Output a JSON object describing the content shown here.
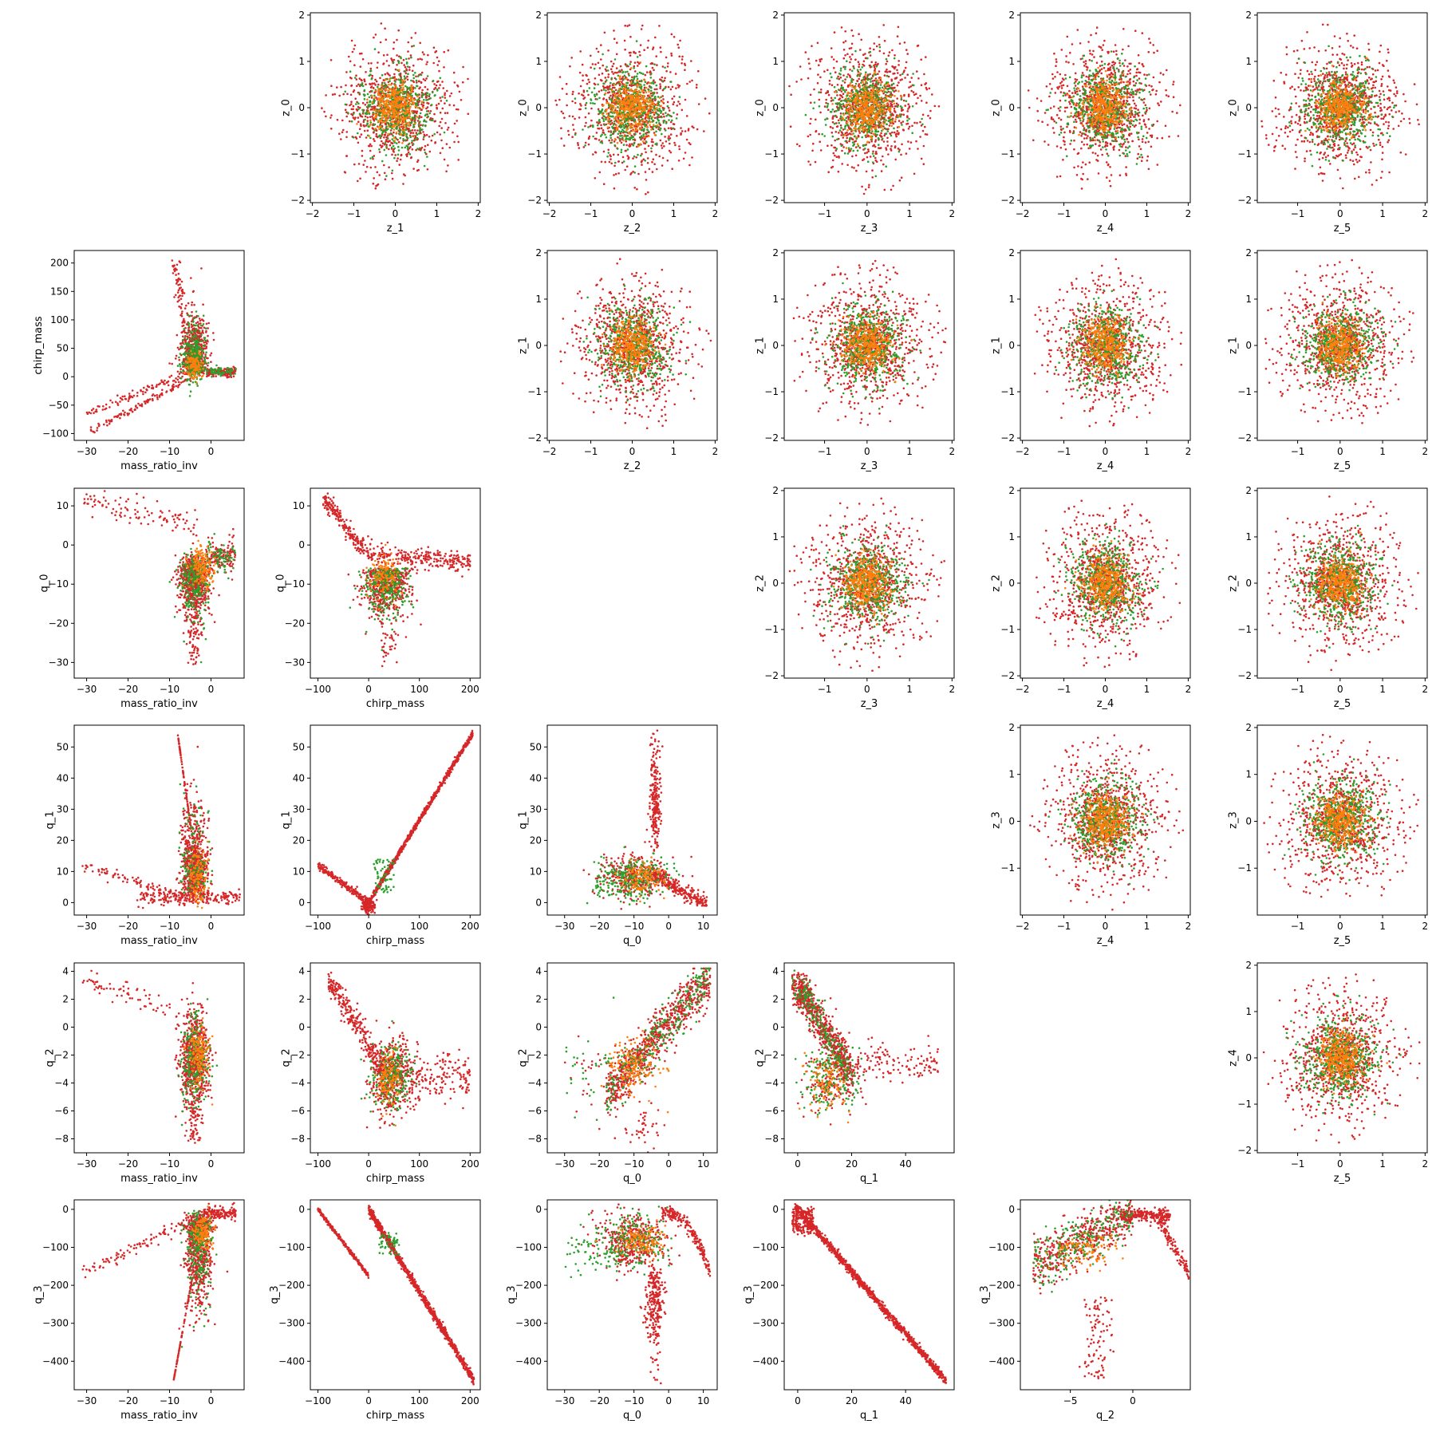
{
  "figure": {
    "type": "scatter-matrix",
    "point_colors": [
      "#d62728",
      "#2ca02c",
      "#ff7f0e"
    ],
    "axis_color": "#000000",
    "background": "#ffffff"
  },
  "chart_data": [
    {
      "type": "scatter",
      "row": 0,
      "col": 1,
      "xlabel": "z_1",
      "ylabel": "z_0",
      "xlim": [
        -2.05,
        2.05
      ],
      "ylim": [
        -2.05,
        2.05
      ],
      "xticks": [
        -2,
        -1,
        0,
        1,
        2
      ],
      "yticks": [
        -2,
        -1,
        0,
        1,
        2
      ],
      "xtick_labels": [
        "−2",
        "−1",
        "0",
        "1",
        "2"
      ],
      "ytick_labels": [
        "−2",
        "−1",
        "0",
        "1",
        "2"
      ],
      "dist": "gauss",
      "seed": 11
    },
    {
      "type": "scatter",
      "row": 0,
      "col": 2,
      "xlabel": "z_2",
      "ylabel": "z_0",
      "xlim": [
        -2.05,
        2.05
      ],
      "ylim": [
        -2.05,
        2.05
      ],
      "xticks": [
        -2,
        -1,
        0,
        1,
        2
      ],
      "yticks": [
        -2,
        -1,
        0,
        1,
        2
      ],
      "xtick_labels": [
        "−2",
        "−1",
        "0",
        "1",
        "2"
      ],
      "ytick_labels": [
        "−2",
        "−1",
        "0",
        "1",
        "2"
      ],
      "dist": "gauss",
      "seed": 12
    },
    {
      "type": "scatter",
      "row": 0,
      "col": 3,
      "xlabel": "z_3",
      "ylabel": "z_0",
      "xlim": [
        -1.95,
        2.05
      ],
      "ylim": [
        -2.05,
        2.05
      ],
      "xticks": [
        -1,
        0,
        1,
        2
      ],
      "yticks": [
        -2,
        -1,
        0,
        1,
        2
      ],
      "xtick_labels": [
        "−1",
        "0",
        "1",
        "2"
      ],
      "ytick_labels": [
        "−2",
        "−1",
        "0",
        "1",
        "2"
      ],
      "dist": "gauss",
      "seed": 13
    },
    {
      "type": "scatter",
      "row": 0,
      "col": 4,
      "xlabel": "z_4",
      "ylabel": "z_0",
      "xlim": [
        -2.05,
        2.05
      ],
      "ylim": [
        -2.05,
        2.05
      ],
      "xticks": [
        -2,
        -1,
        0,
        1,
        2
      ],
      "yticks": [
        -2,
        -1,
        0,
        1,
        2
      ],
      "xtick_labels": [
        "−2",
        "−1",
        "0",
        "1",
        "2"
      ],
      "ytick_labels": [
        "−2",
        "−1",
        "0",
        "1",
        "2"
      ],
      "dist": "gauss",
      "seed": 14
    },
    {
      "type": "scatter",
      "row": 0,
      "col": 5,
      "xlabel": "z_5",
      "ylabel": "z_0",
      "xlim": [
        -1.95,
        2.05
      ],
      "ylim": [
        -2.05,
        2.05
      ],
      "xticks": [
        -1,
        0,
        1,
        2
      ],
      "yticks": [
        -2,
        -1,
        0,
        1,
        2
      ],
      "xtick_labels": [
        "−1",
        "0",
        "1",
        "2"
      ],
      "ytick_labels": [
        "−2",
        "−1",
        "0",
        "1",
        "2"
      ],
      "dist": "gauss",
      "seed": 15
    },
    {
      "type": "scatter",
      "row": 1,
      "col": 0,
      "xlabel": "mass_ratio_inv",
      "ylabel": "chirp_mass",
      "xlim": [
        -33,
        8
      ],
      "ylim": [
        -112,
        222
      ],
      "xticks": [
        -30,
        -20,
        -10,
        0
      ],
      "yticks": [
        -100,
        -50,
        0,
        50,
        100,
        150,
        200
      ],
      "xtick_labels": [
        "−30",
        "−20",
        "−10",
        "0"
      ],
      "ytick_labels": [
        "−100",
        "−50",
        "0",
        "50",
        "100",
        "150",
        "200"
      ],
      "dist": "mr_cm",
      "seed": 21
    },
    {
      "type": "scatter",
      "row": 1,
      "col": 2,
      "xlabel": "z_2",
      "ylabel": "z_1",
      "xlim": [
        -2.05,
        2.05
      ],
      "ylim": [
        -2.05,
        2.05
      ],
      "xticks": [
        -2,
        -1,
        0,
        1,
        2
      ],
      "yticks": [
        -2,
        -1,
        0,
        1,
        2
      ],
      "xtick_labels": [
        "−2",
        "−1",
        "0",
        "1",
        "2"
      ],
      "ytick_labels": [
        "−2",
        "−1",
        "0",
        "1",
        "2"
      ],
      "dist": "gauss",
      "seed": 22
    },
    {
      "type": "scatter",
      "row": 1,
      "col": 3,
      "xlabel": "z_3",
      "ylabel": "z_1",
      "xlim": [
        -1.95,
        2.05
      ],
      "ylim": [
        -2.05,
        2.05
      ],
      "xticks": [
        -1,
        0,
        1,
        2
      ],
      "yticks": [
        -2,
        -1,
        0,
        1,
        2
      ],
      "xtick_labels": [
        "−1",
        "0",
        "1",
        "2"
      ],
      "ytick_labels": [
        "−2",
        "−1",
        "0",
        "1",
        "2"
      ],
      "dist": "gauss",
      "seed": 23
    },
    {
      "type": "scatter",
      "row": 1,
      "col": 4,
      "xlabel": "z_4",
      "ylabel": "z_1",
      "xlim": [
        -2.05,
        2.05
      ],
      "ylim": [
        -2.05,
        2.05
      ],
      "xticks": [
        -2,
        -1,
        0,
        1,
        2
      ],
      "yticks": [
        -2,
        -1,
        0,
        1,
        2
      ],
      "xtick_labels": [
        "−2",
        "−1",
        "0",
        "1",
        "2"
      ],
      "ytick_labels": [
        "−2",
        "−1",
        "0",
        "1",
        "2"
      ],
      "dist": "gauss",
      "seed": 24
    },
    {
      "type": "scatter",
      "row": 1,
      "col": 5,
      "xlabel": "z_5",
      "ylabel": "z_1",
      "xlim": [
        -1.95,
        2.05
      ],
      "ylim": [
        -2.05,
        2.05
      ],
      "xticks": [
        -1,
        0,
        1,
        2
      ],
      "yticks": [
        -2,
        -1,
        0,
        1,
        2
      ],
      "xtick_labels": [
        "−1",
        "0",
        "1",
        "2"
      ],
      "ytick_labels": [
        "−2",
        "−1",
        "0",
        "1",
        "2"
      ],
      "dist": "gauss",
      "seed": 25
    },
    {
      "type": "scatter",
      "row": 2,
      "col": 0,
      "xlabel": "mass_ratio_inv",
      "ylabel": "q_0",
      "xlim": [
        -33,
        8
      ],
      "ylim": [
        -34,
        14.5
      ],
      "xticks": [
        -30,
        -20,
        -10,
        0
      ],
      "yticks": [
        -30,
        -20,
        -10,
        0,
        10
      ],
      "xtick_labels": [
        "−30",
        "−20",
        "−10",
        "0"
      ],
      "ytick_labels": [
        "−30",
        "−20",
        "−10",
        "0",
        "10"
      ],
      "dist": "mr_q0",
      "seed": 31
    },
    {
      "type": "scatter",
      "row": 2,
      "col": 1,
      "xlabel": "chirp_mass",
      "ylabel": "q_0",
      "xlim": [
        -115,
        220
      ],
      "ylim": [
        -34,
        14.5
      ],
      "xticks": [
        -100,
        0,
        100,
        200
      ],
      "yticks": [
        -30,
        -20,
        -10,
        0,
        10
      ],
      "xtick_labels": [
        "−100",
        "0",
        "100",
        "200"
      ],
      "ytick_labels": [
        "−30",
        "−20",
        "−10",
        "0",
        "10"
      ],
      "dist": "cm_q0",
      "seed": 32
    },
    {
      "type": "scatter",
      "row": 2,
      "col": 3,
      "xlabel": "z_3",
      "ylabel": "z_2",
      "xlim": [
        -1.95,
        2.05
      ],
      "ylim": [
        -2.05,
        2.05
      ],
      "xticks": [
        -1,
        0,
        1,
        2
      ],
      "yticks": [
        -2,
        -1,
        0,
        1,
        2
      ],
      "xtick_labels": [
        "−1",
        "0",
        "1",
        "2"
      ],
      "ytick_labels": [
        "−2",
        "−1",
        "0",
        "1",
        "2"
      ],
      "dist": "gauss",
      "seed": 33
    },
    {
      "type": "scatter",
      "row": 2,
      "col": 4,
      "xlabel": "z_4",
      "ylabel": "z_2",
      "xlim": [
        -2.05,
        2.05
      ],
      "ylim": [
        -2.05,
        2.05
      ],
      "xticks": [
        -2,
        -1,
        0,
        1,
        2
      ],
      "yticks": [
        -2,
        -1,
        0,
        1,
        2
      ],
      "xtick_labels": [
        "−2",
        "−1",
        "0",
        "1",
        "2"
      ],
      "ytick_labels": [
        "−2",
        "−1",
        "0",
        "1",
        "2"
      ],
      "dist": "gauss",
      "seed": 34
    },
    {
      "type": "scatter",
      "row": 2,
      "col": 5,
      "xlabel": "z_5",
      "ylabel": "z_2",
      "xlim": [
        -1.95,
        2.05
      ],
      "ylim": [
        -2.05,
        2.05
      ],
      "xticks": [
        -1,
        0,
        1,
        2
      ],
      "yticks": [
        -2,
        -1,
        0,
        1,
        2
      ],
      "xtick_labels": [
        "−1",
        "0",
        "1",
        "2"
      ],
      "ytick_labels": [
        "−2",
        "−1",
        "0",
        "1",
        "2"
      ],
      "dist": "gauss",
      "seed": 35
    },
    {
      "type": "scatter",
      "row": 3,
      "col": 0,
      "xlabel": "mass_ratio_inv",
      "ylabel": "q_1",
      "xlim": [
        -33,
        8
      ],
      "ylim": [
        -4,
        57
      ],
      "xticks": [
        -30,
        -20,
        -10,
        0
      ],
      "yticks": [
        0,
        10,
        20,
        30,
        40,
        50
      ],
      "xtick_labels": [
        "−30",
        "−20",
        "−10",
        "0"
      ],
      "ytick_labels": [
        "0",
        "10",
        "20",
        "30",
        "40",
        "50"
      ],
      "dist": "mr_q1",
      "seed": 41
    },
    {
      "type": "scatter",
      "row": 3,
      "col": 1,
      "xlabel": "chirp_mass",
      "ylabel": "q_1",
      "xlim": [
        -115,
        220
      ],
      "ylim": [
        -4,
        57
      ],
      "xticks": [
        -100,
        0,
        100,
        200
      ],
      "yticks": [
        0,
        10,
        20,
        30,
        40,
        50
      ],
      "xtick_labels": [
        "−100",
        "0",
        "100",
        "200"
      ],
      "ytick_labels": [
        "0",
        "10",
        "20",
        "30",
        "40",
        "50"
      ],
      "dist": "cm_q1",
      "seed": 42
    },
    {
      "type": "scatter",
      "row": 3,
      "col": 2,
      "xlabel": "q_0",
      "ylabel": "q_1",
      "xlim": [
        -35,
        14
      ],
      "ylim": [
        -4,
        57
      ],
      "xticks": [
        -30,
        -20,
        -10,
        0,
        10
      ],
      "yticks": [
        0,
        10,
        20,
        30,
        40,
        50
      ],
      "xtick_labels": [
        "−30",
        "−20",
        "−10",
        "0",
        "10"
      ],
      "ytick_labels": [
        "0",
        "10",
        "20",
        "30",
        "40",
        "50"
      ],
      "dist": "q0_q1",
      "seed": 43
    },
    {
      "type": "scatter",
      "row": 3,
      "col": 4,
      "xlabel": "z_4",
      "ylabel": "z_3",
      "xlim": [
        -2.05,
        2.05
      ],
      "ylim": [
        -2.0,
        2.05
      ],
      "xticks": [
        -2,
        -1,
        0,
        1,
        2
      ],
      "yticks": [
        -1,
        0,
        1,
        2
      ],
      "xtick_labels": [
        "−2",
        "−1",
        "0",
        "1",
        "2"
      ],
      "ytick_labels": [
        "−1",
        "0",
        "1",
        "2"
      ],
      "dist": "gauss",
      "seed": 44
    },
    {
      "type": "scatter",
      "row": 3,
      "col": 5,
      "xlabel": "z_5",
      "ylabel": "z_3",
      "xlim": [
        -1.95,
        2.05
      ],
      "ylim": [
        -2.0,
        2.05
      ],
      "xticks": [
        -1,
        0,
        1,
        2
      ],
      "yticks": [
        -1,
        0,
        1,
        2
      ],
      "xtick_labels": [
        "−1",
        "0",
        "1",
        "2"
      ],
      "ytick_labels": [
        "−1",
        "0",
        "1",
        "2"
      ],
      "dist": "gauss",
      "seed": 45
    },
    {
      "type": "scatter",
      "row": 4,
      "col": 0,
      "xlabel": "mass_ratio_inv",
      "ylabel": "q_2",
      "xlim": [
        -33,
        8
      ],
      "ylim": [
        -9,
        4.6
      ],
      "xticks": [
        -30,
        -20,
        -10,
        0
      ],
      "yticks": [
        -8,
        -6,
        -4,
        -2,
        0,
        2,
        4
      ],
      "xtick_labels": [
        "−30",
        "−20",
        "−10",
        "0"
      ],
      "ytick_labels": [
        "−8",
        "−6",
        "−4",
        "−2",
        "0",
        "2",
        "4"
      ],
      "dist": "mr_q2",
      "seed": 51
    },
    {
      "type": "scatter",
      "row": 4,
      "col": 1,
      "xlabel": "chirp_mass",
      "ylabel": "q_2",
      "xlim": [
        -115,
        220
      ],
      "ylim": [
        -9,
        4.6
      ],
      "xticks": [
        -100,
        0,
        100,
        200
      ],
      "yticks": [
        -8,
        -6,
        -4,
        -2,
        0,
        2,
        4
      ],
      "xtick_labels": [
        "−100",
        "0",
        "100",
        "200"
      ],
      "ytick_labels": [
        "−8",
        "−6",
        "−4",
        "−2",
        "0",
        "2",
        "4"
      ],
      "dist": "cm_q2",
      "seed": 52
    },
    {
      "type": "scatter",
      "row": 4,
      "col": 2,
      "xlabel": "q_0",
      "ylabel": "q_2",
      "xlim": [
        -35,
        14
      ],
      "ylim": [
        -9,
        4.6
      ],
      "xticks": [
        -30,
        -20,
        -10,
        0,
        10
      ],
      "yticks": [
        -8,
        -6,
        -4,
        -2,
        0,
        2,
        4
      ],
      "xtick_labels": [
        "−30",
        "−20",
        "−10",
        "0",
        "10"
      ],
      "ytick_labels": [
        "−8",
        "−6",
        "−4",
        "−2",
        "0",
        "2",
        "4"
      ],
      "dist": "q0_q2",
      "seed": 53
    },
    {
      "type": "scatter",
      "row": 4,
      "col": 3,
      "xlabel": "q_1",
      "ylabel": "q_2",
      "xlim": [
        -5,
        58
      ],
      "ylim": [
        -9,
        4.6
      ],
      "xticks": [
        0,
        20,
        40
      ],
      "yticks": [
        -8,
        -6,
        -4,
        -2,
        0,
        2,
        4
      ],
      "xtick_labels": [
        "0",
        "20",
        "40"
      ],
      "ytick_labels": [
        "−8",
        "−6",
        "−4",
        "−2",
        "0",
        "2",
        "4"
      ],
      "dist": "q1_q2",
      "seed": 54
    },
    {
      "type": "scatter",
      "row": 4,
      "col": 5,
      "xlabel": "z_5",
      "ylabel": "z_4",
      "xlim": [
        -1.95,
        2.05
      ],
      "ylim": [
        -2.05,
        2.05
      ],
      "xticks": [
        -1,
        0,
        1,
        2
      ],
      "yticks": [
        -2,
        -1,
        0,
        1,
        2
      ],
      "xtick_labels": [
        "−1",
        "0",
        "1",
        "2"
      ],
      "ytick_labels": [
        "−2",
        "−1",
        "0",
        "1",
        "2"
      ],
      "dist": "gauss",
      "seed": 55
    },
    {
      "type": "scatter",
      "row": 5,
      "col": 0,
      "xlabel": "mass_ratio_inv",
      "ylabel": "q_3",
      "xlim": [
        -33,
        8
      ],
      "ylim": [
        -475,
        25
      ],
      "xticks": [
        -30,
        -20,
        -10,
        0
      ],
      "yticks": [
        -400,
        -300,
        -200,
        -100,
        0
      ],
      "xtick_labels": [
        "−30",
        "−20",
        "−10",
        "0"
      ],
      "ytick_labels": [
        "−400",
        "−300",
        "−200",
        "−100",
        "0"
      ],
      "dist": "mr_q3",
      "seed": 61
    },
    {
      "type": "scatter",
      "row": 5,
      "col": 1,
      "xlabel": "chirp_mass",
      "ylabel": "q_3",
      "xlim": [
        -115,
        220
      ],
      "ylim": [
        -475,
        25
      ],
      "xticks": [
        -100,
        0,
        100,
        200
      ],
      "yticks": [
        -400,
        -300,
        -200,
        -100,
        0
      ],
      "xtick_labels": [
        "−100",
        "0",
        "100",
        "200"
      ],
      "ytick_labels": [
        "−400",
        "−300",
        "−200",
        "−100",
        "0"
      ],
      "dist": "cm_q3",
      "seed": 62
    },
    {
      "type": "scatter",
      "row": 5,
      "col": 2,
      "xlabel": "q_0",
      "ylabel": "q_3",
      "xlim": [
        -35,
        14
      ],
      "ylim": [
        -475,
        25
      ],
      "xticks": [
        -30,
        -20,
        -10,
        0,
        10
      ],
      "yticks": [
        -400,
        -300,
        -200,
        -100,
        0
      ],
      "xtick_labels": [
        "−30",
        "−20",
        "−10",
        "0",
        "10"
      ],
      "ytick_labels": [
        "−400",
        "−300",
        "−200",
        "−100",
        "0"
      ],
      "dist": "q0_q3",
      "seed": 63
    },
    {
      "type": "scatter",
      "row": 5,
      "col": 3,
      "xlabel": "q_1",
      "ylabel": "q_3",
      "xlim": [
        -5,
        58
      ],
      "ylim": [
        -475,
        25
      ],
      "xticks": [
        0,
        20,
        40
      ],
      "yticks": [
        -400,
        -300,
        -200,
        -100,
        0
      ],
      "xtick_labels": [
        "0",
        "20",
        "40"
      ],
      "ytick_labels": [
        "−400",
        "−300",
        "−200",
        "−100",
        "0"
      ],
      "dist": "q1_q3",
      "seed": 64
    },
    {
      "type": "scatter",
      "row": 5,
      "col": 4,
      "xlabel": "q_2",
      "ylabel": "q_3",
      "xlim": [
        -9,
        4.6
      ],
      "ylim": [
        -475,
        25
      ],
      "xticks": [
        -5,
        0
      ],
      "yticks": [
        -400,
        -300,
        -200,
        -100,
        0
      ],
      "xtick_labels": [
        "−5",
        "0"
      ],
      "ytick_labels": [
        "−400",
        "−300",
        "−200",
        "−100",
        "0"
      ],
      "dist": "q2_q3",
      "seed": 65
    }
  ]
}
